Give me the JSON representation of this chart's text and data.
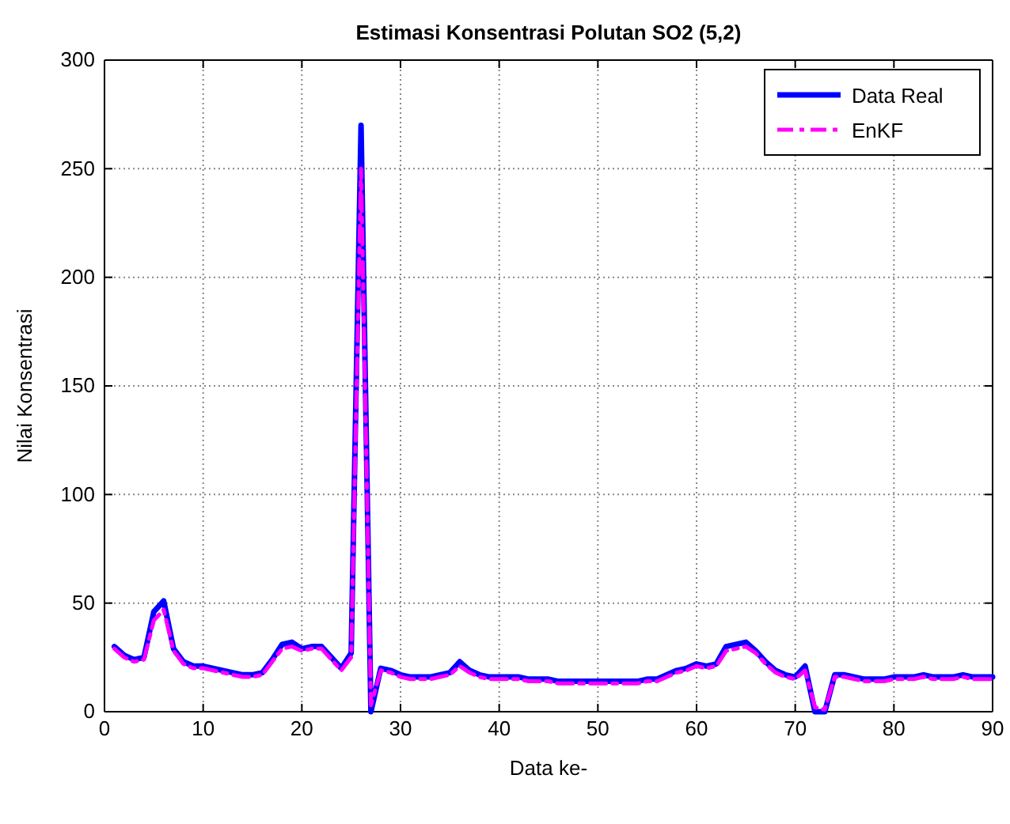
{
  "chart_data": {
    "type": "line",
    "title": "Estimasi Konsentrasi Polutan SO2 (5,2)",
    "xlabel": "Data ke-",
    "ylabel": "Nilai Konsentrasi",
    "x": [
      1,
      2,
      3,
      4,
      5,
      6,
      7,
      8,
      9,
      10,
      11,
      12,
      13,
      14,
      15,
      16,
      17,
      18,
      19,
      20,
      21,
      22,
      23,
      24,
      25,
      26,
      27,
      28,
      29,
      30,
      31,
      32,
      33,
      34,
      35,
      36,
      37,
      38,
      39,
      40,
      41,
      42,
      43,
      44,
      45,
      46,
      47,
      48,
      49,
      50,
      51,
      52,
      53,
      54,
      55,
      56,
      57,
      58,
      59,
      60,
      61,
      62,
      63,
      64,
      65,
      66,
      67,
      68,
      69,
      70,
      71,
      72,
      73,
      74,
      75,
      76,
      77,
      78,
      79,
      80,
      81,
      82,
      83,
      84,
      85,
      86,
      87,
      88,
      89,
      90
    ],
    "series": [
      {
        "name": "Data Real",
        "color": "#0000ff",
        "line_style": "solid",
        "values": [
          30,
          26,
          24,
          25,
          46,
          51,
          29,
          23,
          21,
          21,
          20,
          19,
          18,
          17,
          17,
          18,
          24,
          31,
          32,
          29,
          30,
          30,
          25,
          20,
          27,
          270,
          0,
          20,
          19,
          17,
          16,
          16,
          16,
          17,
          18,
          23,
          19,
          17,
          16,
          16,
          16,
          16,
          15,
          15,
          15,
          14,
          14,
          14,
          14,
          14,
          14,
          14,
          14,
          14,
          15,
          15,
          17,
          19,
          20,
          22,
          21,
          22,
          30,
          31,
          32,
          28,
          23,
          19,
          17,
          16,
          21,
          0,
          0,
          17,
          17,
          16,
          15,
          15,
          15,
          16,
          16,
          16,
          17,
          16,
          16,
          16,
          17,
          16,
          16,
          16
        ]
      },
      {
        "name": "EnKF",
        "color": "#ff00ff",
        "line_style": "dashed",
        "values": [
          29,
          25,
          23,
          24,
          42,
          47,
          28,
          22,
          20,
          20,
          19,
          18,
          17,
          16,
          16,
          17,
          23,
          29,
          30,
          28,
          29,
          29,
          24,
          19,
          25,
          250,
          3,
          19,
          18,
          16,
          15,
          15,
          15,
          16,
          17,
          21,
          18,
          16,
          15,
          15,
          15,
          15,
          14,
          14,
          14,
          13,
          13,
          13,
          13,
          13,
          13,
          13,
          13,
          13,
          14,
          14,
          16,
          18,
          19,
          21,
          20,
          21,
          28,
          29,
          30,
          27,
          22,
          18,
          16,
          15,
          19,
          2,
          1,
          16,
          16,
          15,
          14,
          14,
          14,
          15,
          15,
          15,
          16,
          15,
          15,
          15,
          16,
          15,
          15,
          15
        ]
      }
    ],
    "xlim": [
      0,
      90
    ],
    "xticks": [
      0,
      10,
      20,
      30,
      40,
      50,
      60,
      70,
      80,
      90
    ],
    "ylim": [
      0,
      300
    ],
    "yticks": [
      0,
      50,
      100,
      150,
      200,
      250,
      300
    ],
    "grid": true,
    "legend": "top right",
    "marker": "none"
  }
}
